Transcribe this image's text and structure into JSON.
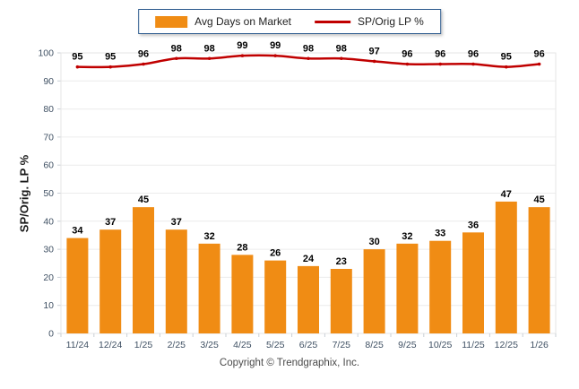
{
  "legend": {
    "bar_label": "Avg Days on Market",
    "line_label": "SP/Orig LP %"
  },
  "y_axis": {
    "title": "SP/Orig. LP %"
  },
  "footer": {
    "text": "Copyright © Trendgraphix, Inc."
  },
  "colors": {
    "bar": "#F08C14",
    "line": "#C00000",
    "legend_border": "#2E5C8F",
    "grid": "#ECECEC",
    "plot_border": "#E6E6E6",
    "tick": "#C9CFD6",
    "axis_text": "#3F5063",
    "value_text": "#000000",
    "y_title_text": "#1A1A1A",
    "footer_text": "#4B4B4B"
  },
  "chart_data": {
    "type": "bar",
    "combo_types": [
      "bar",
      "line"
    ],
    "title": "",
    "xlabel": "",
    "ylabel": "SP/Orig. LP %",
    "categories": [
      "11/24",
      "12/24",
      "1/25",
      "2/25",
      "3/25",
      "4/25",
      "5/25",
      "6/25",
      "7/25",
      "8/25",
      "9/25",
      "10/25",
      "11/25",
      "12/25",
      "1/26"
    ],
    "series": [
      {
        "name": "Avg Days on Market",
        "type": "bar",
        "values": [
          34,
          37,
          45,
          37,
          32,
          28,
          26,
          24,
          23,
          30,
          32,
          33,
          36,
          47,
          45
        ]
      },
      {
        "name": "SP/Orig LP %",
        "type": "line",
        "values": [
          95,
          95,
          96,
          98,
          98,
          99,
          99,
          98,
          98,
          97,
          96,
          96,
          96,
          95,
          96
        ]
      }
    ],
    "ylim": [
      0,
      100
    ],
    "yticks": [
      0,
      10,
      20,
      30,
      40,
      50,
      60,
      70,
      80,
      90,
      100
    ],
    "grid": true,
    "data_labels": true,
    "legend_position": "top-center"
  }
}
